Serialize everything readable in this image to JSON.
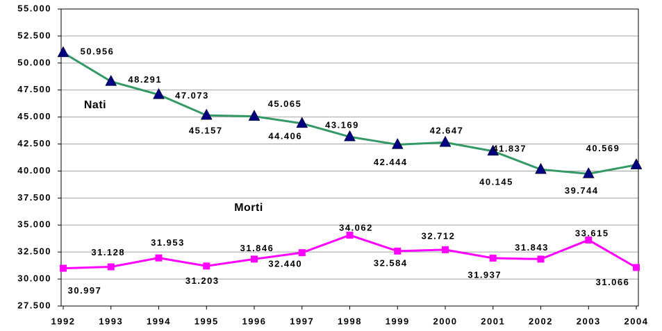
{
  "chart_data": {
    "type": "line",
    "categories": [
      "1992",
      "1993",
      "1994",
      "1995",
      "1996",
      "1997",
      "1998",
      "1999",
      "2000",
      "2001",
      "2002",
      "2003",
      "2004"
    ],
    "series": [
      {
        "name": "Nati",
        "color": "#339966",
        "marker_color": "#000080",
        "marker": "triangle",
        "values": [
          50956,
          48291,
          47073,
          45157,
          45065,
          44406,
          43169,
          42444,
          42647,
          41837,
          40145,
          39744,
          40569
        ],
        "value_labels": [
          "50.956",
          "48.291",
          "47.073",
          "45.157",
          "45.065",
          "44.406",
          "43.169",
          "42.444",
          "42.647",
          "41.837",
          "40.145",
          "39.744",
          "40.569"
        ]
      },
      {
        "name": "Morti",
        "color": "#ff00ff",
        "marker_color": "#ff00ff",
        "marker": "square",
        "values": [
          30997,
          31128,
          31953,
          31203,
          31846,
          32440,
          34062,
          32584,
          32712,
          31937,
          31843,
          33615,
          31066
        ],
        "value_labels": [
          "30.997",
          "31.128",
          "31.953",
          "31.203",
          "31.846",
          "32.440",
          "34.062",
          "32.584",
          "32.712",
          "31.937",
          "31.843",
          "33.615",
          "31.066"
        ]
      }
    ],
    "ylim": [
      27500,
      55000
    ],
    "yticks": [
      {
        "value": 27500,
        "label": "27.500"
      },
      {
        "value": 30000,
        "label": "30.000"
      },
      {
        "value": 32500,
        "label": "32.500"
      },
      {
        "value": 35000,
        "label": "35.000"
      },
      {
        "value": 37500,
        "label": "37.500"
      },
      {
        "value": 40000,
        "label": "40.000"
      },
      {
        "value": 42500,
        "label": "42.500"
      },
      {
        "value": 45000,
        "label": "45.000"
      },
      {
        "value": 47500,
        "label": "47.500"
      },
      {
        "value": 50000,
        "label": "50.000"
      },
      {
        "value": 52500,
        "label": "52.500"
      },
      {
        "value": 55000,
        "label": "55.000"
      }
    ],
    "grid": true
  }
}
